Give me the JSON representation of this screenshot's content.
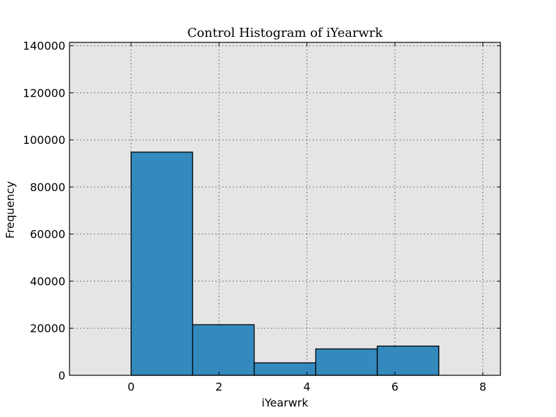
{
  "chart_data": {
    "type": "bar",
    "title": "Control Histogram of iYearwrk",
    "xlabel": "iYearwrk",
    "ylabel": "Frequency",
    "xlim": [
      -1.4,
      8.4
    ],
    "ylim": [
      0,
      141400
    ],
    "xticks": [
      0,
      2,
      4,
      6,
      8
    ],
    "yticks": [
      0,
      20000,
      40000,
      60000,
      80000,
      100000,
      120000,
      140000
    ],
    "bins": [
      {
        "x0": 0.0,
        "x1": 1.4,
        "value": 94800
      },
      {
        "x0": 1.4,
        "x1": 2.8,
        "value": 21500
      },
      {
        "x0": 2.8,
        "x1": 4.2,
        "value": 5300
      },
      {
        "x0": 4.2,
        "x1": 5.6,
        "value": 11200
      },
      {
        "x0": 5.6,
        "x1": 7.0,
        "value": 12400
      }
    ],
    "grid": true,
    "colors": {
      "bar": "#348abd",
      "plot_background": "#e5e5e5"
    }
  }
}
